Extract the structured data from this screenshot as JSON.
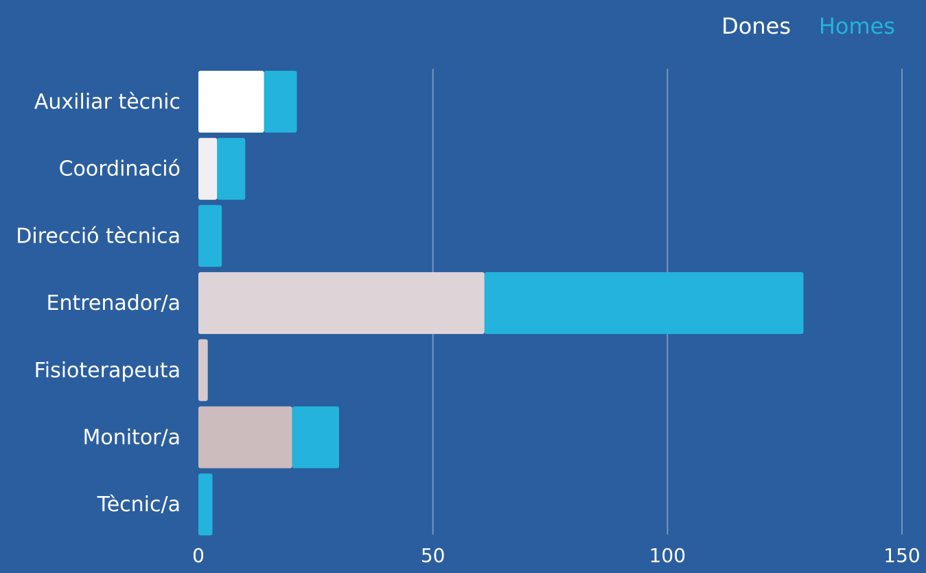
{
  "chart_data": {
    "type": "bar",
    "orientation": "horizontal",
    "stacked": true,
    "title": "",
    "xlabel": "",
    "ylabel": "",
    "categories": [
      "Auxiliar tècnic",
      "Coordinació",
      "Direcció tècnica",
      "Entrenador/a",
      "Fisioterapeuta",
      "Monitor/a",
      "Tècnic/a"
    ],
    "series": [
      {
        "name": "Dones",
        "values": [
          14,
          4,
          0,
          61,
          2,
          20,
          0
        ],
        "color": "#ffffff",
        "bar_colors": [
          "#ffffff",
          "#f1eff2",
          "#e7e1e5",
          "#ded4d8",
          "#d6cace",
          "#cdbcbe",
          "#c5b0b2"
        ]
      },
      {
        "name": "Homes",
        "values": [
          7,
          6,
          5,
          68,
          0,
          10,
          3
        ],
        "color": "#23b3dc"
      }
    ],
    "xlim": [
      0,
      150
    ],
    "xticks": [
      0,
      50,
      100,
      150
    ],
    "grid": true,
    "legend_position": "top-right"
  }
}
